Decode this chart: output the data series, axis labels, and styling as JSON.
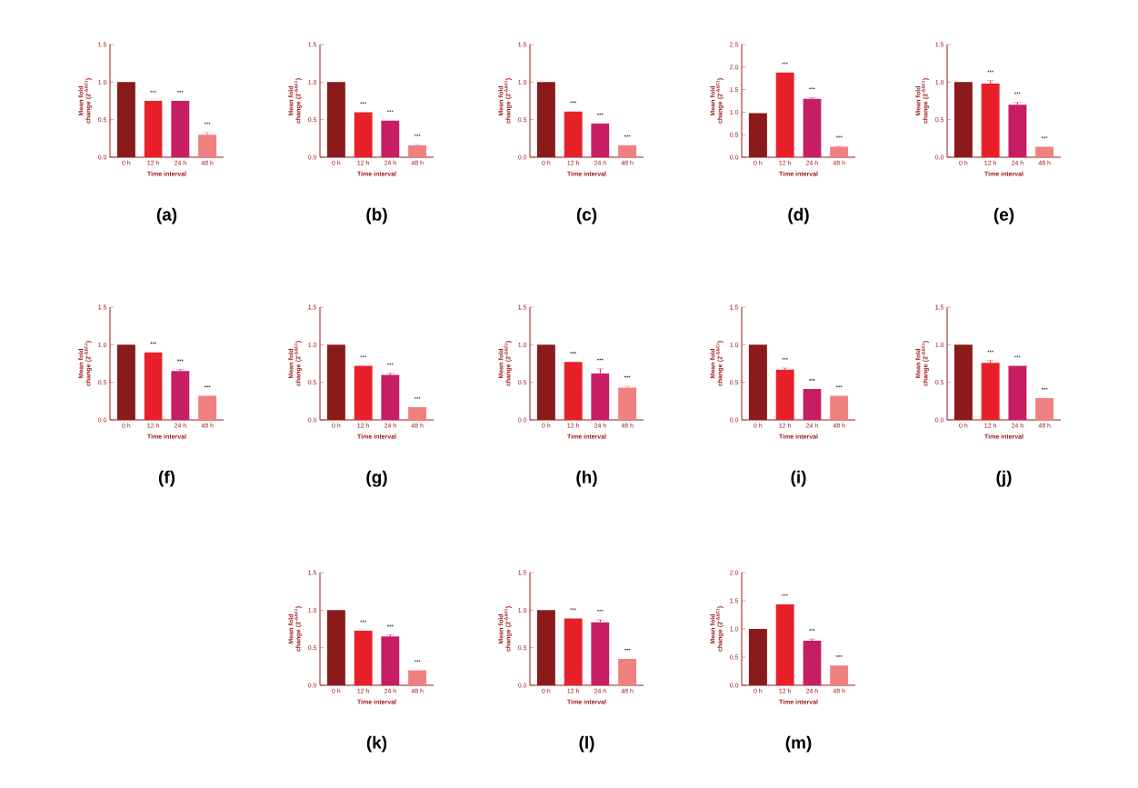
{
  "chart_data": [
    {
      "type": "bar",
      "title": "(a)",
      "xlabel": "Time interval",
      "ylabel": "Mean fold change (2$^{-ΔΔCt}$)",
      "categories": [
        "0 h",
        "12 h",
        "24 h",
        "48 h"
      ],
      "values": [
        1.0,
        0.75,
        0.75,
        0.3
      ],
      "errors": [
        null,
        null,
        null,
        0.03
      ],
      "colors": [
        "#8b1a1a",
        "#e8202a",
        "#c71e63",
        "#f08080"
      ],
      "ylim": [
        0,
        1.5
      ],
      "yticks": [
        {
          "value": 0,
          "label": "0.0"
        },
        0.5,
        {
          "value": 1,
          "label": "1.0"
        },
        1.5
      ],
      "annotations": [
        "***",
        "***",
        "***"
      ]
    },
    {
      "type": "bar",
      "title": "(b)",
      "xlabel": "Time interval",
      "ylabel": "Mean fold change (2$^{-ΔΔCt}$)",
      "categories": [
        "0 h",
        "12 h",
        "24 h",
        "48 h"
      ],
      "values": [
        1.0,
        0.6,
        0.49,
        0.16
      ],
      "errors": [
        null,
        null,
        null,
        0.01
      ],
      "colors": [
        "#8b1a1a",
        "#e8202a",
        "#c71e63",
        "#f08080"
      ],
      "ylim": [
        0,
        1.5
      ],
      "yticks": [
        {
          "value": 0,
          "label": "0.0"
        },
        0.5,
        {
          "value": 1,
          "label": "1.0"
        },
        1.5
      ],
      "annotations": [
        "***",
        "***",
        "***"
      ]
    },
    {
      "type": "bar",
      "title": "(c)",
      "xlabel": "Time interval",
      "ylabel": "Mean fold change (2$^{-ΔΔCt}$)",
      "categories": [
        "0 h",
        "12 h",
        "24 h",
        "48 h"
      ],
      "values": [
        1.0,
        0.61,
        0.45,
        0.16
      ],
      "errors": [
        null,
        null,
        null,
        null
      ],
      "colors": [
        "#8b1a1a",
        "#e8202a",
        "#c71e63",
        "#f08080"
      ],
      "ylim": [
        0,
        1.5
      ],
      "yticks": [
        {
          "value": 0,
          "label": "0.0"
        },
        0.5,
        {
          "value": 1,
          "label": "1.0"
        },
        1.5
      ],
      "annotations": [
        "***",
        "***",
        "***"
      ]
    },
    {
      "type": "bar",
      "title": "(d)",
      "xlabel": "Time interval",
      "ylabel": "Mean fold change (2$^{-ΔΔCt}$)",
      "categories": [
        "0 h",
        "12 h",
        "24 h",
        "48 h"
      ],
      "values": [
        0.98,
        1.88,
        1.3,
        0.23
      ],
      "errors": [
        null,
        null,
        0.02,
        0.02
      ],
      "colors": [
        "#8b1a1a",
        "#e8202a",
        "#c71e63",
        "#f08080"
      ],
      "ylim": [
        0,
        2.5
      ],
      "yticks": [
        {
          "value": 0,
          "label": "0.0"
        },
        0.5,
        {
          "value": 1,
          "label": "1.0"
        },
        1.5,
        {
          "value": 2,
          "label": "2.0"
        },
        2.5
      ],
      "annotations": [
        "***",
        "***",
        "***"
      ]
    },
    {
      "type": "bar",
      "title": "(e)",
      "xlabel": "Time interval",
      "ylabel": "Mean fold change (2$^{-ΔΔCt}$)",
      "categories": [
        "0 h",
        "12 h",
        "24 h",
        "48 h"
      ],
      "values": [
        1.0,
        0.98,
        0.7,
        0.14
      ],
      "errors": [
        null,
        0.04,
        0.03,
        null
      ],
      "colors": [
        "#8b1a1a",
        "#e8202a",
        "#c71e63",
        "#f08080"
      ],
      "ylim": [
        0,
        1.5
      ],
      "yticks": [
        {
          "value": 0,
          "label": "0.0"
        },
        0.5,
        {
          "value": 1,
          "label": "1.0"
        },
        1.5
      ],
      "annotations": [
        "***",
        "***",
        "***"
      ]
    },
    {
      "type": "bar",
      "title": "(f)",
      "xlabel": "Time interval",
      "ylabel": "Mean fold change (2$^{-ΔΔCt}$)",
      "categories": [
        "0 h",
        "12 h",
        "24 h",
        "48 h"
      ],
      "values": [
        1.0,
        0.9,
        0.65,
        0.32
      ],
      "errors": [
        null,
        null,
        0.02,
        null
      ],
      "colors": [
        "#8b1a1a",
        "#e8202a",
        "#c71e63",
        "#f08080"
      ],
      "ylim": [
        0,
        1.5
      ],
      "yticks": [
        {
          "value": 0,
          "label": "0.0"
        },
        0.5,
        {
          "value": 1,
          "label": "1.0"
        },
        1.5
      ],
      "annotations": [
        "***",
        "***",
        "***"
      ]
    },
    {
      "type": "bar",
      "title": "(g)",
      "xlabel": "Time interval",
      "ylabel": "Mean fold change (2$^{-ΔΔCt}$)",
      "categories": [
        "0 h",
        "12 h",
        "24 h",
        "48 h"
      ],
      "values": [
        1.0,
        0.72,
        0.6,
        0.17
      ],
      "errors": [
        null,
        null,
        0.02,
        null
      ],
      "colors": [
        "#8b1a1a",
        "#e8202a",
        "#c71e63",
        "#f08080"
      ],
      "ylim": [
        0,
        1.5
      ],
      "yticks": [
        {
          "value": 0,
          "label": "0.0"
        },
        0.5,
        {
          "value": 1,
          "label": "1.0"
        },
        1.5
      ],
      "annotations": [
        "***",
        "***",
        "***"
      ]
    },
    {
      "type": "bar",
      "title": "(h)",
      "xlabel": "Time interval",
      "ylabel": "Mean fold change (2$^{-ΔΔCt}$)",
      "categories": [
        "0 h",
        "12 h",
        "24 h",
        "48 h"
      ],
      "values": [
        1.0,
        0.77,
        0.62,
        0.43
      ],
      "errors": [
        null,
        null,
        0.06,
        0.02
      ],
      "colors": [
        "#8b1a1a",
        "#e8202a",
        "#c71e63",
        "#f08080"
      ],
      "ylim": [
        0,
        1.5
      ],
      "yticks": [
        {
          "value": 0,
          "label": "0.0"
        },
        0.5,
        {
          "value": 1,
          "label": "1.0"
        },
        1.5
      ],
      "annotations": [
        "***",
        "***",
        "***"
      ]
    },
    {
      "type": "bar",
      "title": "(i)",
      "xlabel": "Time interval",
      "ylabel": "Mean fold change (2$^{-ΔΔCt}$)",
      "categories": [
        "0 h",
        "12 h",
        "24 h",
        "48 h"
      ],
      "values": [
        1.0,
        0.67,
        0.41,
        0.32
      ],
      "errors": [
        null,
        0.02,
        null,
        null
      ],
      "colors": [
        "#8b1a1a",
        "#e8202a",
        "#c71e63",
        "#f08080"
      ],
      "ylim": [
        0,
        1.5
      ],
      "yticks": [
        {
          "value": 0,
          "label": "0.0"
        },
        0.5,
        {
          "value": 1,
          "label": "1.0"
        },
        1.5
      ],
      "annotations": [
        "***",
        "***",
        "***"
      ]
    },
    {
      "type": "bar",
      "title": "(j)",
      "xlabel": "Time interval",
      "ylabel": "Mean fold change (2$^{-ΔΔCt}$)",
      "categories": [
        "0 h",
        "12 h",
        "24 h",
        "48 h"
      ],
      "values": [
        1.0,
        0.76,
        0.72,
        0.29
      ],
      "errors": [
        null,
        0.03,
        null,
        null
      ],
      "colors": [
        "#8b1a1a",
        "#e8202a",
        "#c71e63",
        "#f08080"
      ],
      "ylim": [
        0,
        1.5
      ],
      "yticks": [
        {
          "value": 0,
          "label": "0.0"
        },
        0.5,
        {
          "value": 1,
          "label": "1.0"
        },
        1.5
      ],
      "annotations": [
        "***",
        "***",
        "***"
      ]
    },
    {
      "type": "bar",
      "title": "(k)",
      "xlabel": "Time interval",
      "ylabel": "Mean fold change (2$^{-ΔΔCt}$)",
      "categories": [
        "0 h",
        "12 h",
        "24 h",
        "48 h"
      ],
      "values": [
        1.0,
        0.73,
        0.65,
        0.2
      ],
      "errors": [
        null,
        null,
        0.02,
        null
      ],
      "colors": [
        "#8b1a1a",
        "#e8202a",
        "#c71e63",
        "#f08080"
      ],
      "ylim": [
        0,
        1.5
      ],
      "yticks": [
        {
          "value": 0,
          "label": "0.0"
        },
        0.5,
        {
          "value": 1,
          "label": "1.0"
        },
        1.5
      ],
      "annotations": [
        "***",
        "***",
        "***"
      ]
    },
    {
      "type": "bar",
      "title": "(l)",
      "xlabel": "Time interval",
      "ylabel": "Mean fold change (2$^{-ΔΔCt}$)",
      "categories": [
        "0 h",
        "12 h",
        "24 h",
        "48 h"
      ],
      "values": [
        1.0,
        0.89,
        0.84,
        0.35
      ],
      "errors": [
        null,
        null,
        0.03,
        null
      ],
      "colors": [
        "#8b1a1a",
        "#e8202a",
        "#c71e63",
        "#f08080"
      ],
      "ylim": [
        0,
        1.5
      ],
      "yticks": [
        {
          "value": 0,
          "label": "0.0"
        },
        0.5,
        {
          "value": 1,
          "label": "1.0"
        },
        1.5
      ],
      "annotations": [
        "***",
        "***",
        "***"
      ]
    },
    {
      "type": "bar",
      "title": "(m)",
      "xlabel": "Time interval",
      "ylabel": "Mean fold change (2$^{-ΔΔCt}$)",
      "categories": [
        "0 h",
        "12 h",
        "24 h",
        "48 h"
      ],
      "values": [
        1.0,
        1.44,
        0.79,
        0.35
      ],
      "errors": [
        null,
        null,
        0.03,
        null
      ],
      "colors": [
        "#8b1a1a",
        "#e8202a",
        "#c71e63",
        "#f08080"
      ],
      "ylim": [
        0,
        2.0
      ],
      "yticks": [
        {
          "value": 0,
          "label": "0.0"
        },
        0.5,
        {
          "value": 1,
          "label": "1.0"
        },
        1.5,
        {
          "value": 2,
          "label": "2.0"
        }
      ],
      "annotations": [
        "***",
        "***",
        "***"
      ]
    }
  ]
}
